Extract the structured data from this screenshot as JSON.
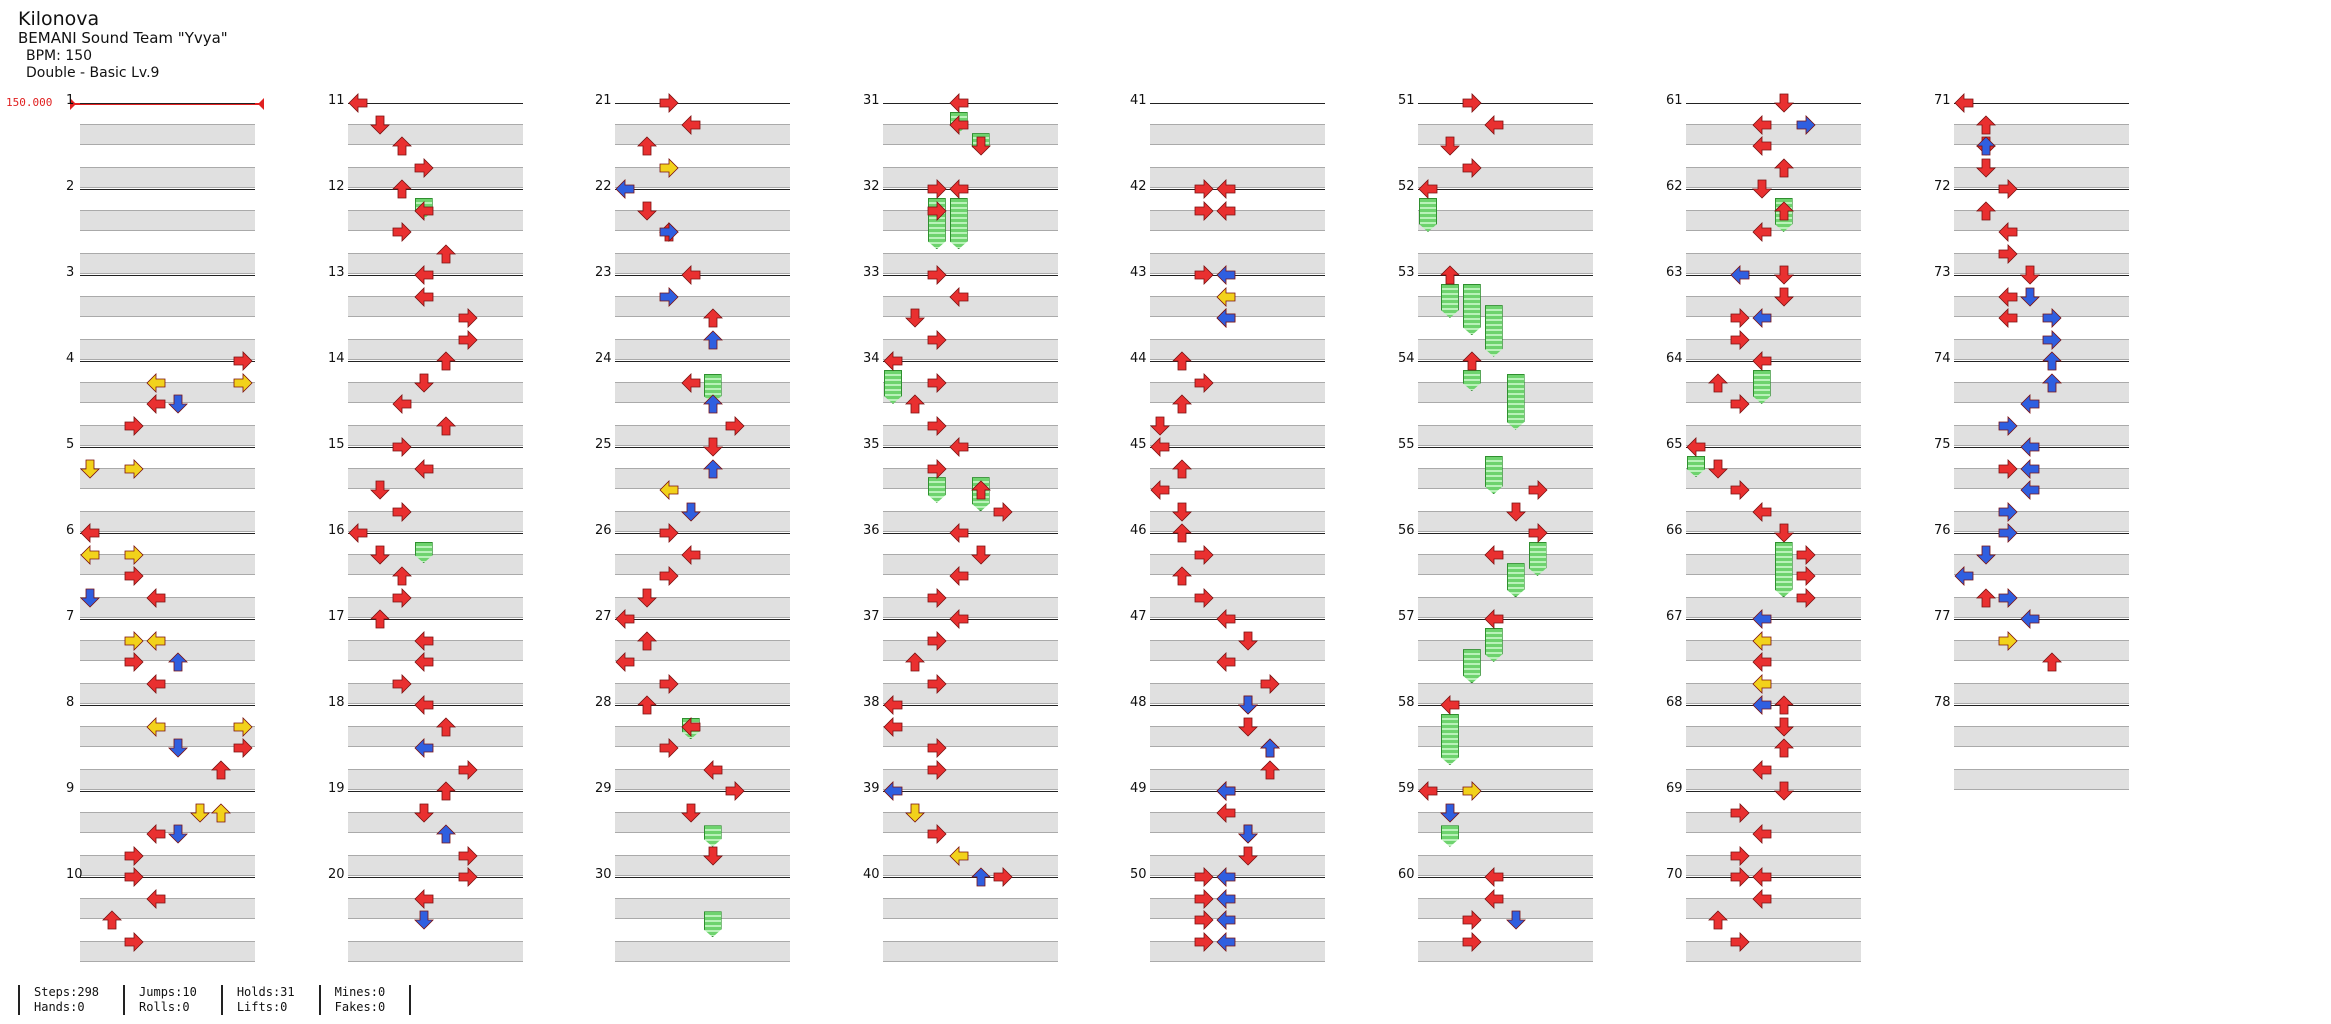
{
  "song": {
    "title": "Kilonova",
    "artist": "BEMANI Sound Team \"Yvya\"",
    "bpm_text": "BPM: 150",
    "chart_text": "Double - Basic  Lv.9",
    "bpm_marker": "150.000"
  },
  "measures": [
    "1",
    "2",
    "3",
    "4",
    "5",
    "6",
    "7",
    "8",
    "9",
    "10",
    "11",
    "12",
    "13",
    "14",
    "15",
    "16",
    "17",
    "18",
    "19",
    "20",
    "21",
    "22",
    "23",
    "24",
    "25",
    "26",
    "27",
    "28",
    "29",
    "30",
    "31",
    "32",
    "33",
    "34",
    "35",
    "36",
    "37",
    "38",
    "39",
    "40",
    "41",
    "42",
    "43",
    "44",
    "45",
    "46",
    "47",
    "48",
    "49",
    "50",
    "51",
    "52",
    "53",
    "54",
    "55",
    "56",
    "57",
    "58",
    "59",
    "60",
    "61",
    "62",
    "63",
    "64",
    "65",
    "66",
    "67",
    "68",
    "69",
    "70",
    "71",
    "72",
    "73",
    "74",
    "75",
    "76",
    "77",
    "78"
  ],
  "stats": {
    "steps": "Steps:298",
    "hands": "Hands:0",
    "jumps": "Jumps:10",
    "rolls": "Rolls:0",
    "holds": "Holds:31",
    "lifts": "Lifts:0",
    "mines": "Mines:0",
    "fakes": "Fakes:0"
  },
  "colors": {
    "red": "#e93030",
    "blue": "#2f5fe0",
    "yellow": "#f2d21b",
    "hold": "#6ed36e"
  }
}
